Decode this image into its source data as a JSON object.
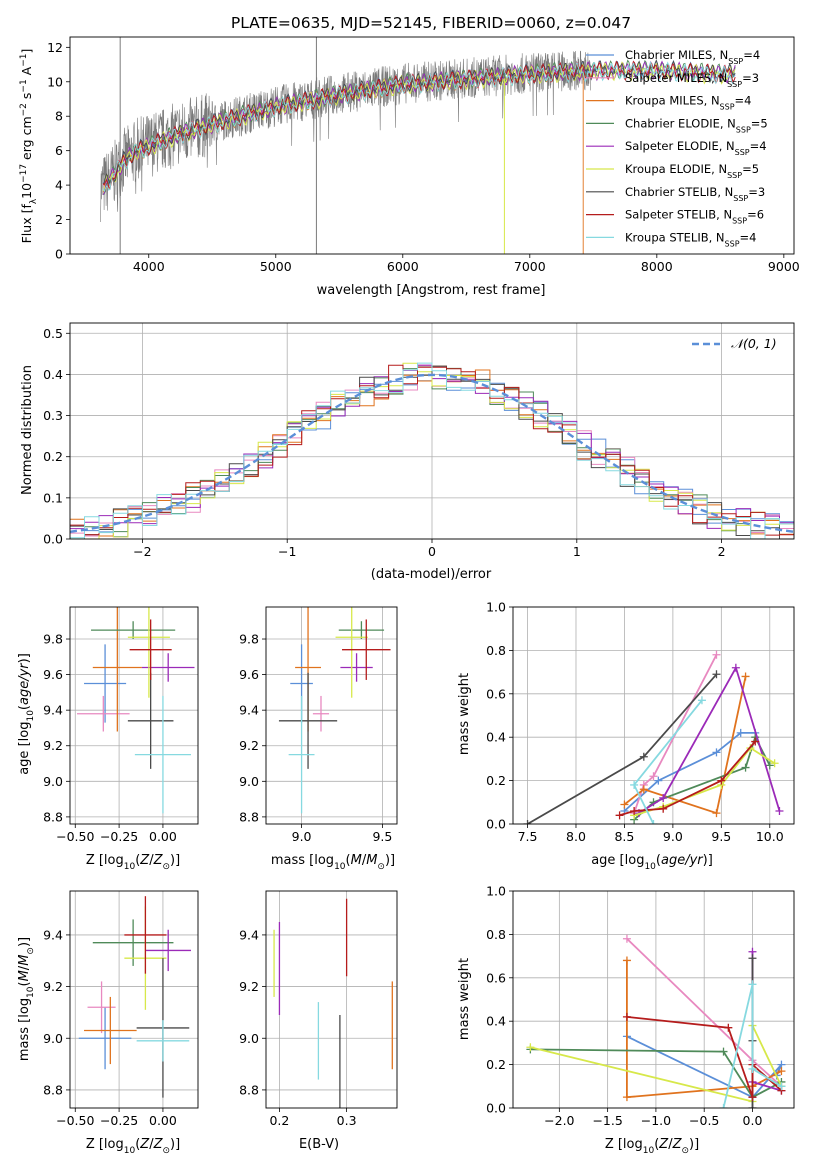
{
  "chart_data": [
    {
      "id": "spectrum",
      "type": "line",
      "title": "PLATE=0635, MJD=52145, FIBERID=0060, z=0.047",
      "xlabel": "wavelength [Angstrom, rest frame]",
      "ylabel": "Flux [f_λ10^-17 erg cm^-2 s^-1 A^-1]",
      "xlim": [
        3380,
        9080
      ],
      "ylim": [
        0,
        12.6
      ],
      "xticks": [
        4000,
        5000,
        6000,
        7000,
        8000,
        9000
      ],
      "yticks": [
        0,
        2,
        4,
        6,
        8,
        10,
        12
      ],
      "legend": "top-right",
      "series": [
        {
          "name": "Chabrier MILES, N_SSP=4",
          "color": "#5b8fd8"
        },
        {
          "name": "Salpeter MILES, N_SSP=3",
          "color": "#e889c0"
        },
        {
          "name": "Kroupa MILES, N_SSP=4",
          "color": "#e0731e"
        },
        {
          "name": "Chabrier ELODIE, N_SSP=5",
          "color": "#4f8a59"
        },
        {
          "name": "Salpeter ELODIE, N_SSP=4",
          "color": "#9b2ab8"
        },
        {
          "name": "Kroupa ELODIE, N_SSP=5",
          "color": "#d7e84a"
        },
        {
          "name": "Chabrier STELIB, N_SSP=3",
          "color": "#4a4a4a"
        },
        {
          "name": "Salpeter STELIB, N_SSP=6",
          "color": "#b51c1c"
        },
        {
          "name": "Kroupa STELIB, N_SSP=4",
          "color": "#86d9e0"
        }
      ],
      "continuum": {
        "x": [
          3600,
          3700,
          3800,
          3900,
          4000,
          4200,
          4500,
          5000,
          5500,
          6000,
          6500,
          7000,
          7500,
          8000,
          8500
        ],
        "y": [
          3.6,
          4.4,
          5.4,
          6.0,
          6.3,
          6.9,
          7.6,
          8.6,
          9.3,
          9.9,
          10.2,
          10.5,
          10.7,
          10.7,
          10.5
        ]
      }
    },
    {
      "id": "residuals",
      "type": "line",
      "xlabel": "(data-model)/error",
      "ylabel": "Normed distribution",
      "xlim": [
        -2.5,
        2.5
      ],
      "ylim": [
        0,
        0.525
      ],
      "xticks": [
        -2,
        -1,
        0,
        1,
        2
      ],
      "yticks": [
        0.0,
        0.1,
        0.2,
        0.3,
        0.4,
        0.5
      ],
      "legend_label": "𝒩(0, 1)"
    },
    {
      "id": "age-vs-z",
      "type": "scatter",
      "xlabel": "Z [log10(Z/Z☉)]",
      "ylabel": "age  [log10(age/yr)]",
      "xlim": [
        -0.53,
        0.2
      ],
      "ylim": [
        8.76,
        9.98
      ],
      "xticks": [
        -0.5,
        -0.25,
        0.0
      ],
      "yticks": [
        8.8,
        9.0,
        9.2,
        9.4,
        9.6,
        9.8
      ],
      "points": [
        {
          "x": -0.33,
          "xerr": 0.12,
          "y": 9.55,
          "yerr": 0.22
        },
        {
          "x": -0.34,
          "xerr": 0.15,
          "y": 9.38,
          "yerr": 0.1
        },
        {
          "x": -0.26,
          "xerr": 0.14,
          "y": 9.64,
          "yerr": 0.36
        },
        {
          "x": -0.17,
          "xerr": 0.24,
          "y": 9.85,
          "yerr": 0.05
        },
        {
          "x": 0.03,
          "xerr": 0.15,
          "y": 9.64,
          "yerr": 0.08
        },
        {
          "x": -0.08,
          "xerr": 0.12,
          "y": 9.81,
          "yerr": 0.34
        },
        {
          "x": -0.07,
          "xerr": 0.13,
          "y": 9.34,
          "yerr": 0.27
        },
        {
          "x": -0.07,
          "xerr": 0.12,
          "y": 9.74,
          "yerr": 0.17
        },
        {
          "x": 0.0,
          "xerr": 0.16,
          "y": 9.15,
          "yerr": 0.33
        }
      ]
    },
    {
      "id": "age-vs-mass",
      "type": "scatter",
      "xlabel": "mass [log10(M/M☉)]",
      "ylabel": "",
      "xlim": [
        8.78,
        9.59
      ],
      "ylim": [
        8.76,
        9.98
      ],
      "xticks": [
        9.0,
        9.5
      ],
      "yticks": [
        8.8,
        9.0,
        9.2,
        9.4,
        9.6,
        9.8
      ],
      "points": [
        {
          "x": 9.0,
          "xerr": 0.07,
          "y": 9.55,
          "yerr": 0.22
        },
        {
          "x": 9.12,
          "xerr": 0.05,
          "y": 9.38,
          "yerr": 0.1
        },
        {
          "x": 9.04,
          "xerr": 0.08,
          "y": 9.64,
          "yerr": 0.36
        },
        {
          "x": 9.37,
          "xerr": 0.14,
          "y": 9.85,
          "yerr": 0.05
        },
        {
          "x": 9.34,
          "xerr": 0.1,
          "y": 9.64,
          "yerr": 0.08
        },
        {
          "x": 9.31,
          "xerr": 0.1,
          "y": 9.81,
          "yerr": 0.34
        },
        {
          "x": 9.04,
          "xerr": 0.18,
          "y": 9.34,
          "yerr": 0.27
        },
        {
          "x": 9.4,
          "xerr": 0.15,
          "y": 9.74,
          "yerr": 0.17
        },
        {
          "x": 9.0,
          "xerr": 0.08,
          "y": 9.15,
          "yerr": 0.33
        }
      ]
    },
    {
      "id": "weight-vs-age",
      "type": "line",
      "xlabel": "age  [log10(age/yr)]",
      "ylabel": "mass weight",
      "xlim": [
        7.35,
        10.25
      ],
      "ylim": [
        0,
        1.0
      ],
      "xticks": [
        7.5,
        8.0,
        8.5,
        9.0,
        9.5,
        10.0
      ],
      "yticks": [
        0.0,
        0.2,
        0.4,
        0.6,
        0.8,
        1.0
      ],
      "series": [
        {
          "x": [
            8.5,
            8.85,
            9.45,
            9.7,
            9.85
          ],
          "y": [
            0.06,
            0.2,
            0.33,
            0.42,
            0.42
          ]
        },
        {
          "x": [
            8.6,
            8.7,
            8.8,
            9.45
          ],
          "y": [
            0.05,
            0.18,
            0.22,
            0.78
          ]
        },
        {
          "x": [
            8.5,
            8.7,
            9.45,
            9.75
          ],
          "y": [
            0.09,
            0.16,
            0.05,
            0.68
          ]
        },
        {
          "x": [
            8.6,
            8.8,
            9.75,
            9.85,
            10.0
          ],
          "y": [
            0.02,
            0.1,
            0.26,
            0.4,
            0.27
          ]
        },
        {
          "x": [
            8.65,
            8.9,
            9.65,
            10.1
          ],
          "y": [
            0.05,
            0.12,
            0.72,
            0.06
          ]
        },
        {
          "x": [
            8.6,
            8.9,
            9.5,
            9.8,
            10.05
          ],
          "y": [
            0.04,
            0.08,
            0.18,
            0.35,
            0.28
          ]
        },
        {
          "x": [
            7.5,
            8.7,
            9.45
          ],
          "y": [
            0.0,
            0.31,
            0.69
          ]
        },
        {
          "x": [
            8.45,
            8.6,
            8.9,
            9.5,
            9.85
          ],
          "y": [
            0.04,
            0.06,
            0.07,
            0.2,
            0.38
          ]
        },
        {
          "x": [
            8.8,
            8.6,
            9.3
          ],
          "y": [
            0.0,
            0.18,
            0.57
          ]
        }
      ]
    },
    {
      "id": "mass-vs-z",
      "type": "scatter",
      "xlabel": "Z [log10(Z/Z☉)]",
      "ylabel": "mass [log10(M/M☉)]",
      "xlim": [
        -0.53,
        0.2
      ],
      "ylim": [
        8.73,
        9.57
      ],
      "xticks": [
        -0.5,
        -0.25,
        0.0
      ],
      "yticks": [
        8.8,
        9.0,
        9.2,
        9.4
      ],
      "points": [
        {
          "x": -0.33,
          "xerr": 0.15,
          "y": 9.0,
          "yerr": 0.12
        },
        {
          "x": -0.35,
          "xerr": 0.08,
          "y": 9.12,
          "yerr": 0.1
        },
        {
          "x": -0.3,
          "xerr": 0.15,
          "y": 9.03,
          "yerr": 0.13
        },
        {
          "x": -0.17,
          "xerr": 0.23,
          "y": 9.37,
          "yerr": 0.09
        },
        {
          "x": 0.03,
          "xerr": 0.13,
          "y": 9.34,
          "yerr": 0.08
        },
        {
          "x": -0.1,
          "xerr": 0.12,
          "y": 9.31,
          "yerr": 0.2
        },
        {
          "x": 0.0,
          "xerr": 0.15,
          "y": 9.04,
          "yerr": 0.27
        },
        {
          "x": -0.1,
          "xerr": 0.12,
          "y": 9.4,
          "yerr": 0.15
        },
        {
          "x": 0.0,
          "xerr": 0.15,
          "y": 8.99,
          "yerr": 0.08
        }
      ]
    },
    {
      "id": "mass-vs-ebv",
      "type": "scatter",
      "xlabel": "E(B-V)",
      "ylabel": "",
      "xlim": [
        0.18,
        0.375
      ],
      "ylim": [
        8.73,
        9.57
      ],
      "xticks": [
        0.2,
        0.3
      ],
      "yticks": [
        8.8,
        9.0,
        9.2,
        9.4
      ],
      "points": [
        {
          "x": 0.368,
          "y": 9.05,
          "yerr": 0.17
        },
        {
          "x": 0.2,
          "y": 9.27,
          "yerr": 0.18
        },
        {
          "x": 0.192,
          "y": 9.29,
          "yerr": 0.13
        },
        {
          "x": 0.258,
          "y": 8.99,
          "yerr": 0.15
        },
        {
          "x": 0.29,
          "y": 8.88,
          "yerr": 0.21
        },
        {
          "x": 0.3,
          "y": 9.39,
          "yerr": 0.15
        }
      ]
    },
    {
      "id": "weight-vs-z",
      "type": "line",
      "xlabel": "Z [log10(Z/Z☉)]",
      "ylabel": "mass weight",
      "xlim": [
        -2.48,
        0.43
      ],
      "ylim": [
        0,
        1.0
      ],
      "xticks": [
        -2.0,
        -1.5,
        -1.0,
        -0.5,
        0.0
      ],
      "yticks": [
        0.0,
        0.2,
        0.4,
        0.6,
        0.8,
        1.0
      ],
      "series": [
        {
          "x": [
            -1.3,
            0.0,
            0.3,
            0.25
          ],
          "y": [
            0.33,
            0.05,
            0.2,
            0.15
          ]
        },
        {
          "x": [
            -1.3,
            0.0,
            0.3
          ],
          "y": [
            0.78,
            0.22,
            0.1
          ]
        },
        {
          "x": [
            -1.3,
            -1.3,
            0.0,
            0.3
          ],
          "y": [
            0.68,
            0.05,
            0.1,
            0.17
          ]
        },
        {
          "x": [
            -2.3,
            -0.3,
            0.0,
            0.3
          ],
          "y": [
            0.27,
            0.26,
            0.05,
            0.12
          ]
        },
        {
          "x": [
            0.0,
            0.0,
            0.0,
            0.3
          ],
          "y": [
            0.72,
            0.05,
            0.12,
            0.08
          ]
        },
        {
          "x": [
            -2.3,
            0.0,
            0.0,
            0.3
          ],
          "y": [
            0.28,
            0.03,
            0.38,
            0.1
          ]
        },
        {
          "x": [
            0.0,
            0.0,
            0.0
          ],
          "y": [
            0.69,
            0.31,
            0.0
          ]
        },
        {
          "x": [
            -1.3,
            -0.25,
            0.0,
            0.0,
            0.3
          ],
          "y": [
            0.42,
            0.37,
            0.05,
            0.2,
            0.08
          ]
        },
        {
          "x": [
            -0.3,
            0.0,
            0.0,
            0.3
          ],
          "y": [
            0.0,
            0.57,
            0.18,
            0.1
          ]
        }
      ]
    }
  ]
}
